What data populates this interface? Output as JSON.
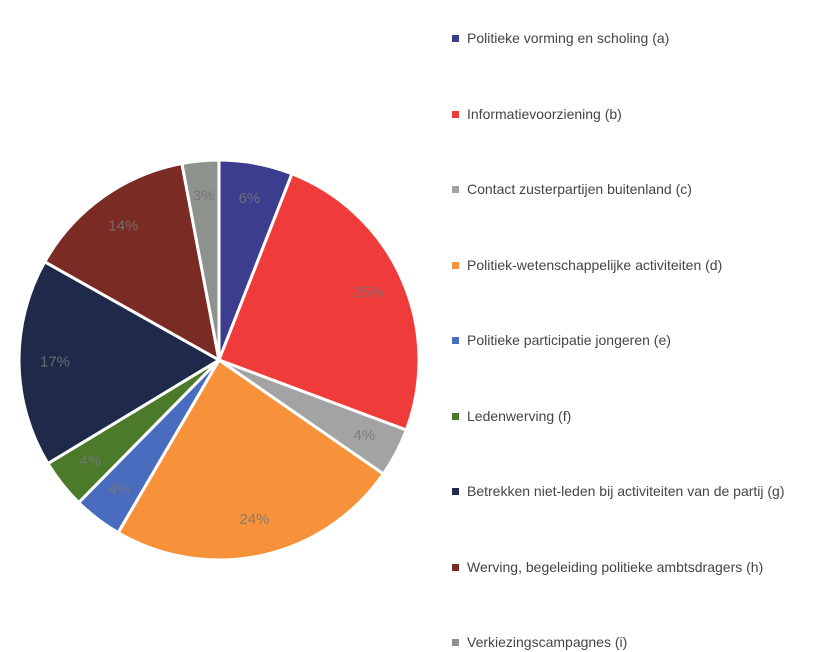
{
  "chart_data": {
    "type": "pie",
    "categories": [
      "Politieke vorming en scholing (a)",
      "Informatievoorziening (b)",
      "Contact zusterpartijen buitenland (c)",
      "Politiek-wetenschappelijke activiteiten (d)",
      "Politieke participatie jongeren (e)",
      "Ledenwerving (f)",
      "Betrekken niet-leden bij activiteiten van de partij (g)",
      "Werving, begeleiding politieke  ambtsdragers (h)",
      "Verkiezingscampagnes (i)"
    ],
    "values": [
      6,
      25,
      4,
      24,
      4,
      4,
      17,
      14,
      3
    ],
    "value_labels": [
      "6%",
      "25%",
      "4%",
      "24%",
      "4%",
      "4%",
      "17%",
      "14%",
      "3%"
    ],
    "colors": [
      "#3c3d8e",
      "#f03b3b",
      "#a3a3a3",
      "#f7923b",
      "#4a6cbf",
      "#4c7a2b",
      "#1f2a4b",
      "#7a2b24",
      "#8d928c"
    ],
    "legend": "right"
  }
}
